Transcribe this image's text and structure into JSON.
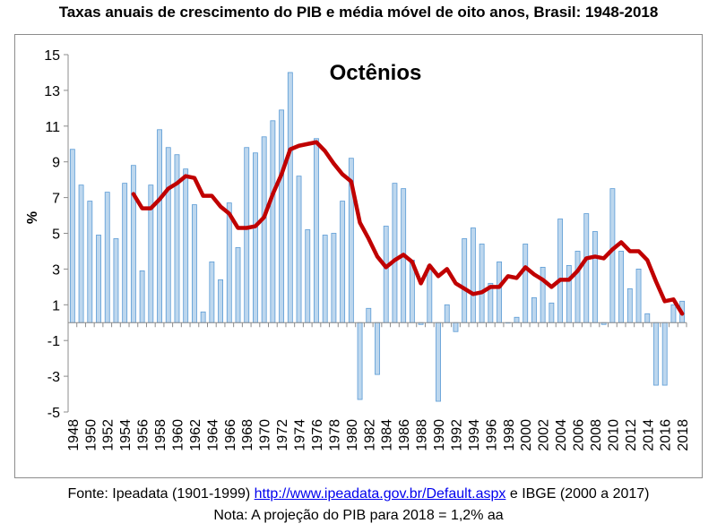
{
  "title": "Taxas anuais de crescimento do PIB e média móvel de oito anos, Brasil: 1948-2018",
  "footer": {
    "source_prefix": "Fonte: Ipeadata (1901-1999)",
    "source_link": "http://www.ipeadata.gov.br/Default.aspx",
    "source_suffix": "e IBGE (2000 a 2017)",
    "note": "Nota: A projeção do PIB para 2018 = 1,2% aa"
  },
  "colors": {
    "bars": "#bdd7ee",
    "bar_edge": "#5b9bd5",
    "line": "#c00000"
  },
  "chart_data": {
    "type": "bar",
    "title": "Octênios",
    "ylabel": "%",
    "ylim": [
      -5,
      15
    ],
    "yticks": [
      -5,
      -3,
      -1,
      1,
      3,
      5,
      7,
      9,
      11,
      13,
      15
    ],
    "grid": false,
    "x": [
      1948,
      1949,
      1950,
      1951,
      1952,
      1953,
      1954,
      1955,
      1956,
      1957,
      1958,
      1959,
      1960,
      1961,
      1962,
      1963,
      1964,
      1965,
      1966,
      1967,
      1968,
      1969,
      1970,
      1971,
      1972,
      1973,
      1974,
      1975,
      1976,
      1977,
      1978,
      1979,
      1980,
      1981,
      1982,
      1983,
      1984,
      1985,
      1986,
      1987,
      1988,
      1989,
      1990,
      1991,
      1992,
      1993,
      1994,
      1995,
      1996,
      1997,
      1998,
      1999,
      2000,
      2001,
      2002,
      2003,
      2004,
      2005,
      2006,
      2007,
      2008,
      2009,
      2010,
      2011,
      2012,
      2013,
      2014,
      2015,
      2016,
      2017,
      2018
    ],
    "xtick_labels": [
      "1948",
      "1950",
      "1952",
      "1954",
      "1956",
      "1958",
      "1960",
      "1962",
      "1964",
      "1966",
      "1968",
      "1970",
      "1972",
      "1974",
      "1976",
      "1978",
      "1980",
      "1982",
      "1984",
      "1986",
      "1988",
      "1990",
      "1992",
      "1994",
      "1996",
      "1998",
      "2000",
      "2002",
      "2004",
      "2006",
      "2008",
      "2010",
      "2012",
      "2014",
      "2016",
      "2018"
    ],
    "series": [
      {
        "kind": "bar",
        "values": [
          9.7,
          7.7,
          6.8,
          4.9,
          7.3,
          4.7,
          7.8,
          8.8,
          2.9,
          7.7,
          10.8,
          9.8,
          9.4,
          8.6,
          6.6,
          0.6,
          3.4,
          2.4,
          6.7,
          4.2,
          9.8,
          9.5,
          10.4,
          11.3,
          11.9,
          14.0,
          8.2,
          5.2,
          10.3,
          4.9,
          5.0,
          6.8,
          9.2,
          -4.3,
          0.8,
          -2.9,
          5.4,
          7.8,
          7.5,
          3.5,
          -0.1,
          3.2,
          -4.4,
          1.0,
          -0.5,
          4.7,
          5.3,
          4.4,
          2.2,
          3.4,
          0.0,
          0.3,
          4.4,
          1.4,
          3.1,
          1.1,
          5.8,
          3.2,
          4.0,
          6.1,
          5.1,
          -0.1,
          7.5,
          4.0,
          1.9,
          3.0,
          0.5,
          -3.5,
          -3.5,
          1.0,
          1.2
        ]
      },
      {
        "kind": "line",
        "x": [
          1955,
          1956,
          1957,
          1958,
          1959,
          1960,
          1961,
          1962,
          1963,
          1964,
          1965,
          1966,
          1967,
          1968,
          1969,
          1970,
          1971,
          1972,
          1973,
          1974,
          1975,
          1976,
          1977,
          1978,
          1979,
          1980,
          1981,
          1982,
          1983,
          1984,
          1985,
          1986,
          1987,
          1988,
          1989,
          1990,
          1991,
          1992,
          1993,
          1994,
          1995,
          1996,
          1997,
          1998,
          1999,
          2000,
          2001,
          2002,
          2003,
          2004,
          2005,
          2006,
          2007,
          2008,
          2009,
          2010,
          2011,
          2012,
          2013,
          2014,
          2015,
          2016,
          2017,
          2018
        ],
        "values": [
          7.2,
          6.4,
          6.4,
          6.9,
          7.5,
          7.8,
          8.2,
          8.1,
          7.1,
          7.1,
          6.5,
          6.1,
          5.3,
          5.3,
          5.4,
          5.9,
          7.2,
          8.3,
          9.7,
          9.9,
          10.0,
          10.1,
          9.6,
          8.9,
          8.3,
          7.9,
          5.6,
          4.7,
          3.7,
          3.1,
          3.5,
          3.8,
          3.4,
          2.2,
          3.2,
          2.6,
          3.0,
          2.2,
          1.9,
          1.6,
          1.7,
          2.0,
          2.0,
          2.6,
          2.5,
          3.1,
          2.7,
          2.4,
          2.0,
          2.4,
          2.4,
          2.9,
          3.6,
          3.7,
          3.6,
          4.1,
          4.5,
          4.0,
          4.0,
          3.5,
          2.3,
          1.2,
          1.3,
          0.5
        ]
      }
    ]
  }
}
